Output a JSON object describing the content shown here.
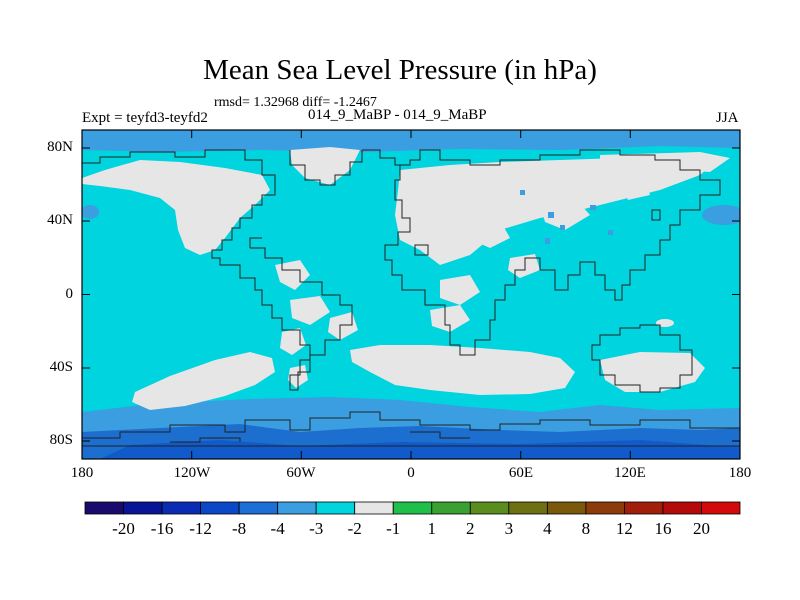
{
  "title": "Mean Sea Level Pressure (in hPa)",
  "stats_text": "rmsd= 1.32968 diff= -1.2467",
  "left_label": "Expt = teyfd3-teyfd2",
  "center_label": "014_9_MaBP - 014_9_MaBP",
  "right_label": "JJA",
  "y_ticks": [
    "80N",
    "40N",
    "0",
    "40S",
    "80S"
  ],
  "x_ticks": [
    "180",
    "120W",
    "60W",
    "0",
    "60E",
    "120E",
    "180"
  ],
  "colors": {
    "ocean_fill": "#00d4df",
    "near_zero_fill": "#e6e6e6",
    "mid_blue": "#3a9ee0",
    "dark_blue": "#1c6fcf",
    "coast_line": "#222222"
  },
  "colorbar": {
    "colors": [
      "#1a0a6e",
      "#0a1496",
      "#0a2cb4",
      "#0a48c8",
      "#1e6ed8",
      "#3a9ee0",
      "#00d4df",
      "#e6e6e6",
      "#1fc04a",
      "#3aa032",
      "#5a8c1e",
      "#6e7014",
      "#7a5a0a",
      "#8c3c0a",
      "#a01e0a",
      "#b40a0a",
      "#d20a0a"
    ],
    "labels": [
      "-20",
      "-16",
      "-12",
      "-8",
      "-4",
      "-3",
      "-2",
      "-1",
      "1",
      "2",
      "3",
      "4",
      "8",
      "12",
      "16",
      "20"
    ]
  }
}
